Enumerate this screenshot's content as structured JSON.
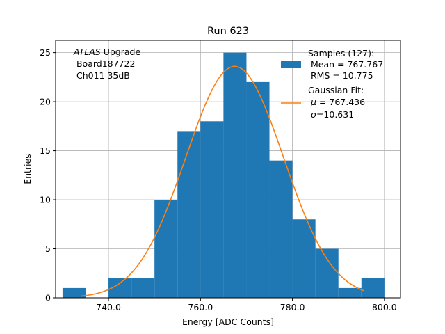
{
  "chart_data": {
    "type": "bar",
    "title": "Run 623",
    "xlabel": "Energy [ADC Counts]",
    "ylabel": "Entries",
    "xlim": [
      728.5,
      803.5
    ],
    "ylim": [
      0,
      26.25
    ],
    "grid": true,
    "x_ticks": [
      {
        "value": 740,
        "label": "740.0"
      },
      {
        "value": 760,
        "label": "760.0"
      },
      {
        "value": 780,
        "label": "780.0"
      },
      {
        "value": 800,
        "label": "800.0"
      }
    ],
    "y_ticks": [
      {
        "value": 0,
        "label": "0"
      },
      {
        "value": 5,
        "label": "5"
      },
      {
        "value": 10,
        "label": "10"
      },
      {
        "value": 15,
        "label": "15"
      },
      {
        "value": 20,
        "label": "20"
      },
      {
        "value": 25,
        "label": "25"
      }
    ],
    "bins": [
      {
        "x0": 730,
        "x1": 735,
        "count": 1
      },
      {
        "x0": 735,
        "x1": 740,
        "count": 0
      },
      {
        "x0": 740,
        "x1": 745,
        "count": 2
      },
      {
        "x0": 745,
        "x1": 750,
        "count": 2
      },
      {
        "x0": 750,
        "x1": 755,
        "count": 10
      },
      {
        "x0": 755,
        "x1": 760,
        "count": 17
      },
      {
        "x0": 760,
        "x1": 765,
        "count": 18
      },
      {
        "x0": 765,
        "x1": 770,
        "count": 25
      },
      {
        "x0": 770,
        "x1": 775,
        "count": 22
      },
      {
        "x0": 775,
        "x1": 780,
        "count": 14
      },
      {
        "x0": 780,
        "x1": 785,
        "count": 8
      },
      {
        "x0": 785,
        "x1": 790,
        "count": 5
      },
      {
        "x0": 790,
        "x1": 795,
        "count": 1
      },
      {
        "x0": 795,
        "x1": 800,
        "count": 2
      }
    ],
    "fit": {
      "mu": 767.436,
      "sigma": 10.631,
      "amplitude": 23.6,
      "x_range": [
        734,
        795.5
      ]
    },
    "colors": {
      "histogram": "#1f77b4",
      "fit": "#ff7f0e",
      "grid": "#b0b0b0"
    },
    "annotation": {
      "italic_part": "ATLAS",
      "line1_rest": " Upgrade",
      "line2": " Board187722",
      "line3": " Ch011 35dB"
    },
    "legend": {
      "placement": "top-right",
      "samples_line1": "Samples (127):",
      "samples_line2": " Mean = 767.767",
      "samples_line3": " RMS = 10.775",
      "fit_line1": "Gaussian Fit:",
      "fit_mu_symbol": "μ",
      "fit_mu_value": " = 767.436",
      "fit_sigma_symbol": "σ",
      "fit_sigma_value": "=10.631"
    }
  }
}
